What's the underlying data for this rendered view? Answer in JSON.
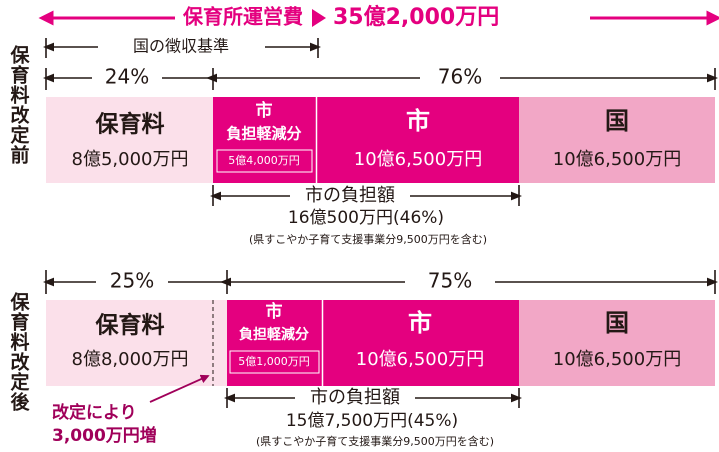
{
  "header": {
    "title": "保育所運営費",
    "total": "35億2,000万円"
  },
  "before": {
    "label": "保育料改定前",
    "standard": "国の徴収基準",
    "share_left": "24%",
    "share_right": "76%",
    "segments": [
      {
        "title": "保育料",
        "amount": "8億5,000万円"
      },
      {
        "title": "市",
        "subtitle": "負担軽減分",
        "amount": "5億4,000万円"
      },
      {
        "title": "市",
        "amount": "10億6,500万円"
      },
      {
        "title": "国",
        "amount": "10億6,500万円"
      }
    ],
    "city_burden": {
      "label": "市の負担額",
      "amount": "16億500万円(46%)",
      "note": "(県すこやか子育て支援事業分9,500万円を含む)"
    }
  },
  "after": {
    "label": "保育料改定後",
    "share_left": "25%",
    "share_right": "75%",
    "segments": [
      {
        "title": "保育料",
        "amount": "8億8,000万円"
      },
      {
        "title": "市",
        "subtitle": "負担軽減分",
        "amount": "5億1,000万円"
      },
      {
        "title": "市",
        "amount": "10億6,500万円"
      },
      {
        "title": "国",
        "amount": "10億6,500万円"
      }
    ],
    "city_burden": {
      "label": "市の負担額",
      "amount": "15億7,500万円(45%)",
      "note": "(県すこやか子育て支援事業分9,500万円を含む)"
    },
    "annotation": [
      "改定により",
      "3,000万円増"
    ]
  }
}
